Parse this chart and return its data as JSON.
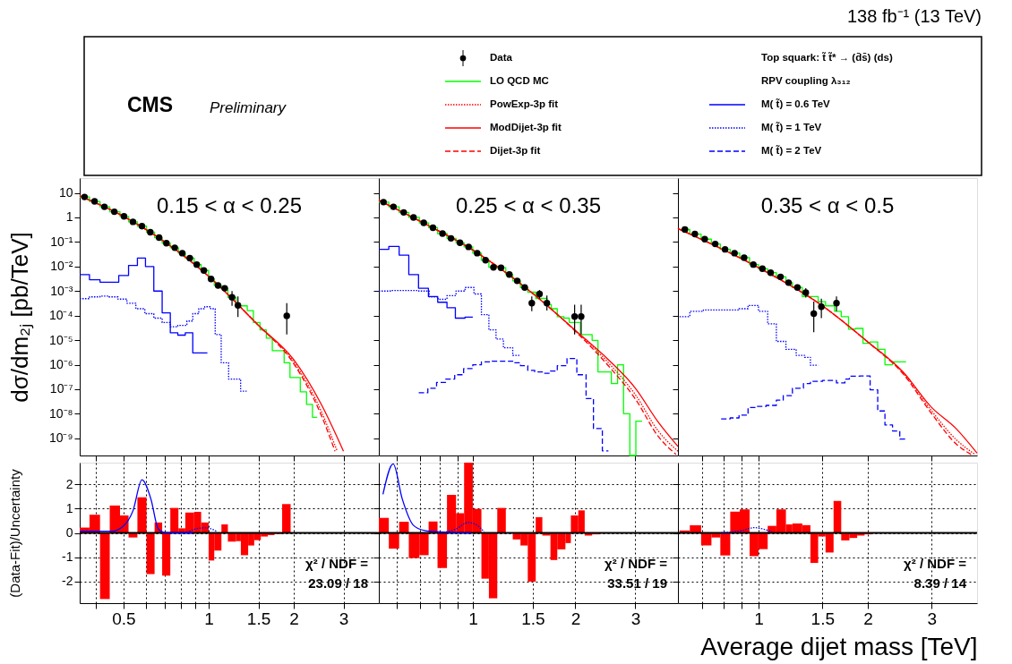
{
  "chart_data": [
    {
      "type": "line",
      "title": "0.15 < α < 0.25",
      "ylabel": "dσ/dm₂ⱼ [pb/TeV]",
      "log": "xy",
      "tick_labels": "y",
      "legend": "top",
      "annotations": [
        "CMS",
        "Preliminary",
        "Top squark: t̃ t̃* → (d̄s̄) (ds)",
        "RPV coupling λ₃₁₂",
        "138 fb⁻¹ (13 TeV)"
      ],
      "xlim": [
        0.35,
        4.0
      ],
      "ylim": [
        2e-10,
        40
      ],
      "xticks": [
        {
          "value": 0.4,
          "label": null
        },
        0.5,
        {
          "value": 0.6,
          "label": null
        },
        {
          "value": 0.7,
          "label": null
        },
        {
          "value": 0.8,
          "label": null
        },
        {
          "value": 0.9,
          "label": null
        },
        1,
        1.5,
        2,
        3
      ],
      "yticks": [
        10,
        1,
        {
          "value": 0.1,
          "label": "10⁻¹"
        },
        {
          "value": 0.01,
          "label": "10⁻²"
        },
        {
          "value": 0.001,
          "label": "10⁻³"
        },
        {
          "value": 0.0001,
          "label": "10⁻⁴"
        },
        {
          "value": 1e-05,
          "label": "10⁻⁵"
        },
        {
          "value": 1e-06,
          "label": "10⁻⁶"
        },
        {
          "value": 1e-07,
          "label": "10⁻⁷"
        },
        {
          "value": 1e-08,
          "label": "10⁻⁸"
        },
        {
          "value": 1e-09,
          "label": "10⁻⁹"
        }
      ],
      "series": [
        {
          "name": "Data",
          "type": "scatter",
          "marker": "circle",
          "color": "#000000",
          "x": [
            0.364,
            0.395,
            0.428,
            0.464,
            0.502,
            0.54,
            0.581,
            0.622,
            0.668,
            0.709,
            0.759,
            0.807,
            0.858,
            0.908,
            0.962,
            1.02,
            1.08,
            1.14,
            1.21,
            1.27,
            1.89
          ],
          "values": [
            6.8,
            4.5,
            2.7,
            1.7,
            1.1,
            0.66,
            0.44,
            0.25,
            0.15,
            0.089,
            0.058,
            0.035,
            0.022,
            0.012,
            0.0069,
            0.0031,
            0.0017,
            0.0013,
            0.00056,
            0.00026,
            9.8e-05
          ],
          "errors": [
            null,
            null,
            null,
            null,
            null,
            null,
            null,
            null,
            null,
            null,
            null,
            null,
            null,
            null,
            null,
            null,
            null,
            null,
            [
              0.00025,
              0.001
            ],
            [
              8.7e-05,
              0.0006
            ],
            [
              1.7e-05,
              0.00032
            ]
          ]
        },
        {
          "name": "LO QCD MC",
          "type": "step",
          "color": "#00ff00",
          "x": [
            0.35,
            0.379,
            0.413,
            0.447,
            0.486,
            0.521,
            0.56,
            0.603,
            0.644,
            0.685,
            0.732,
            0.782,
            0.827,
            0.889,
            0.941,
            1.0,
            1.047,
            1.11,
            1.17,
            1.25,
            1.3,
            1.37,
            1.44,
            1.52,
            1.6,
            1.68,
            1.85,
            1.94,
            2.11,
            2.22,
            2.33,
            2.42
          ],
          "values": [
            6.8,
            4.5,
            2.7,
            1.7,
            1.1,
            0.66,
            0.44,
            0.25,
            0.15,
            0.089,
            0.058,
            0.035,
            0.022,
            0.012,
            0.0069,
            0.0031,
            0.0017,
            0.0013,
            0.00056,
            0.00026,
            0.00025,
            0.00016,
            5.2e-05,
            2.6e-05,
            1.2e-05,
            3.7e-06,
            1.2e-06,
            3e-07,
            7.8e-08,
            2.4e-08,
            7.2e-09,
            7.2e-09
          ]
        },
        {
          "name": "PowExp-3p fit",
          "type": "line",
          "line_style": "dotted",
          "color": "#ff0000",
          "x": [
            0.35,
            0.5,
            0.7,
            1.0,
            1.5,
            2.0,
            2.5,
            2.85
          ],
          "values": [
            7.5,
            1.1,
            0.1,
            0.004,
            4e-05,
            1.3e-06,
            1.3e-08,
            3e-10
          ]
        },
        {
          "name": "ModDijet-3p fit",
          "type": "line",
          "color": "#ff0000",
          "x": [
            0.35,
            0.5,
            0.7,
            1.0,
            1.5,
            2.0,
            2.5,
            3.0
          ],
          "values": [
            7.5,
            1.1,
            0.1,
            0.004,
            4e-05,
            1.6e-06,
            2.5e-08,
            3e-10
          ]
        },
        {
          "name": "Dijet-3p fit",
          "type": "line",
          "line_style": "dashed",
          "color": "#ff0000",
          "x": [
            0.35,
            0.5,
            0.7,
            1.0,
            1.5,
            2.0,
            2.5,
            2.8
          ],
          "values": [
            7.5,
            1.1,
            0.1,
            0.004,
            4e-05,
            1.1e-06,
            9e-09,
            3e-10
          ]
        },
        {
          "name": "M( t̃) = 0.6 TeV",
          "type": "step",
          "color": "#0000ff",
          "x": [
            0.35,
            0.379,
            0.413,
            0.481,
            0.521,
            0.56,
            0.598,
            0.64,
            0.685,
            0.732,
            0.778,
            0.827,
            0.879,
            0.99
          ],
          "values": [
            0.0047,
            0.0029,
            0.0023,
            0.0043,
            0.011,
            0.022,
            0.01,
            0.001,
            0.00013,
            2e-05,
            1.6e-05,
            2e-05,
            3e-06,
            3e-06
          ]
        },
        {
          "name": "M( t̃) = 1 TeV",
          "type": "step",
          "line_style": "dotted",
          "color": "#0000ff",
          "x": [
            0.35,
            0.379,
            0.413,
            0.444,
            0.478,
            0.514,
            0.553,
            0.595,
            0.64,
            0.685,
            0.732,
            0.778,
            0.838,
            0.879,
            0.923,
            0.969,
            1.017,
            1.055,
            1.108,
            1.177,
            1.298,
            1.363
          ],
          "values": [
            0.00049,
            0.00058,
            0.00062,
            0.00058,
            0.00047,
            0.00032,
            0.00019,
            0.00012,
            7.9e-05,
            5.2e-05,
            3.5e-05,
            4e-05,
            6e-05,
            0.00012,
            0.00019,
            0.00023,
            0.00019,
            1.7e-05,
            1.2e-06,
            2.6e-07,
            8.3e-08,
            8.3e-08
          ]
        }
      ]
    },
    {
      "type": "line",
      "title": "0.25 < α < 0.35",
      "log": "xy",
      "tick_labels": false,
      "xlim": [
        0.53,
        4.0
      ],
      "ylim": [
        2e-10,
        40
      ],
      "xticks": [
        {
          "value": 0.6,
          "label": null
        },
        {
          "value": 0.7,
          "label": null
        },
        {
          "value": 0.8,
          "label": null
        },
        {
          "value": 0.9,
          "label": null
        },
        1,
        1.5,
        2,
        3
      ],
      "yticks": [
        {
          "value": 10,
          "label": null
        },
        {
          "value": 1,
          "label": null
        },
        {
          "value": 0.1,
          "label": null
        },
        {
          "value": 0.01,
          "label": null
        },
        {
          "value": 0.001,
          "label": null
        },
        {
          "value": 0.0001,
          "label": null
        },
        {
          "value": 1e-05,
          "label": null
        },
        {
          "value": 1e-06,
          "label": null
        },
        {
          "value": 1e-07,
          "label": null
        },
        {
          "value": 1e-08,
          "label": null
        },
        {
          "value": 1e-09,
          "label": null
        }
      ],
      "series": [
        {
          "type": "scatter",
          "marker": "circle",
          "color": "#000000",
          "x": [
            0.547,
            0.585,
            0.627,
            0.67,
            0.718,
            0.764,
            0.815,
            0.863,
            0.917,
            0.972,
            1.03,
            1.09,
            1.15,
            1.21,
            1.28,
            1.35,
            1.42,
            1.49,
            1.57,
            1.65,
            1.99,
            2.08
          ],
          "values": [
            4.2,
            2.7,
            1.6,
            1.0,
            0.6,
            0.38,
            0.22,
            0.14,
            0.093,
            0.063,
            0.035,
            0.018,
            0.0093,
            0.0089,
            0.0047,
            0.0026,
            0.0014,
            0.00032,
            0.00076,
            0.00032,
            9.1e-05,
            9.1e-05
          ],
          "errors": [
            null,
            null,
            null,
            null,
            null,
            null,
            null,
            null,
            null,
            null,
            null,
            null,
            null,
            null,
            null,
            null,
            null,
            [
              0.00015,
              0.0006
            ],
            [
              0.00049,
              0.0011
            ],
            [
              0.00016,
              0.00065
            ],
            [
              1.7e-05,
              0.00028
            ],
            [
              1.7e-05,
              0.00028
            ]
          ]
        },
        {
          "type": "step",
          "color": "#00ff00",
          "x": [
            0.53,
            0.567,
            0.608,
            0.649,
            0.697,
            0.742,
            0.788,
            0.84,
            0.893,
            0.943,
            1.0,
            1.06,
            1.115,
            1.18,
            1.25,
            1.31,
            1.38,
            1.45,
            1.53,
            1.65,
            1.7,
            1.77,
            1.85,
            1.92,
            2.07,
            2.24,
            2.33,
            2.55,
            2.66,
            2.77,
            2.89,
            3.01,
            3.14
          ],
          "values": [
            4.2,
            2.7,
            1.6,
            1.0,
            0.6,
            0.38,
            0.22,
            0.14,
            0.093,
            0.063,
            0.035,
            0.018,
            0.0093,
            0.0089,
            0.0047,
            0.0026,
            0.0014,
            0.0009,
            0.0005,
            0.00028,
            0.00019,
            9.1e-05,
            7.9e-05,
            5.2e-05,
            1.7e-05,
            9.8e-06,
            5.1e-07,
            1.7e-07,
            1e-06,
            1e-08,
            2e-10,
            5e-09,
            5e-09
          ]
        },
        {
          "type": "line",
          "line_style": "dotted",
          "color": "#ff0000",
          "x": [
            0.53,
            0.7,
            1.0,
            1.5,
            2.0,
            2.5,
            3.0,
            3.5,
            4.0
          ],
          "values": [
            5,
            0.7,
            0.047,
            0.0008,
            2.4e-05,
            1.2e-06,
            6e-08,
            2e-09,
            3e-10
          ]
        },
        {
          "type": "line",
          "color": "#ff0000",
          "x": [
            0.53,
            0.7,
            1.0,
            1.5,
            2.0,
            2.5,
            3.0,
            3.5,
            4.0
          ],
          "values": [
            5,
            0.7,
            0.047,
            0.0008,
            2.5e-05,
            1.6e-06,
            1.1e-07,
            4.6e-09,
            4.7e-10
          ]
        },
        {
          "type": "line",
          "line_style": "dashed",
          "color": "#ff0000",
          "x": [
            0.53,
            0.7,
            1.0,
            1.5,
            2.0,
            2.5,
            3.0,
            3.5,
            3.95
          ],
          "values": [
            5,
            0.7,
            0.047,
            0.0008,
            2.3e-05,
            9e-07,
            4e-08,
            1.2e-09,
            2.2e-10
          ]
        },
        {
          "type": "step",
          "color": "#0000ff",
          "x": [
            0.53,
            0.567,
            0.608,
            0.649,
            0.693,
            0.741,
            0.789,
            0.84,
            0.889,
            0.949,
            1.0
          ],
          "values": [
            0.05,
            0.066,
            0.029,
            0.0047,
            0.0013,
            0.0006,
            0.00035,
            0.00021,
            7.9e-05,
            8.7e-05,
            8.7e-05
          ]
        },
        {
          "type": "step",
          "line_style": "dotted",
          "color": "#0000ff",
          "x": [
            0.53,
            0.573,
            0.647,
            0.694,
            0.745,
            0.791,
            0.84,
            0.893,
            0.949,
            1.008,
            1.06,
            1.115,
            1.17,
            1.23,
            1.31,
            1.38
          ],
          "values": [
            0.001,
            0.00105,
            0.00105,
            0.001,
            0.00058,
            0.00046,
            0.00065,
            0.001,
            0.0014,
            0.00076,
            0.00011,
            2.6e-05,
            1.1e-05,
            4.9e-06,
            2.4e-06,
            2.4e-06
          ]
        },
        {
          "name": "M( t̃) = 2 TeV",
          "type": "step",
          "line_style": "dashed",
          "color": "#0000ff",
          "x": [
            0.694,
            0.738,
            0.783,
            0.832,
            0.885,
            0.94,
            1.0,
            1.06,
            1.14,
            1.23,
            1.31,
            1.38,
            1.45,
            1.52,
            1.6,
            1.69,
            1.77,
            1.89,
            2.02,
            2.15,
            2.26,
            2.4,
            2.5
          ],
          "values": [
            7.2e-08,
            1.1e-07,
            1.9e-07,
            2.6e-07,
            3.9e-07,
            6.9e-07,
            1e-06,
            1.3e-06,
            1.4e-06,
            1.4e-06,
            1.2e-06,
            9.1e-07,
            5.9e-07,
            5.1e-07,
            4.5e-07,
            5.5e-07,
            9.1e-07,
            1.8e-06,
            3.9e-07,
            4.2e-08,
            2.5e-09,
            3.1e-10,
            3.1e-10
          ]
        }
      ]
    },
    {
      "type": "line",
      "title": "0.35 < α < 0.5",
      "log": "xy",
      "tick_labels": false,
      "xlim": [
        0.6,
        4.0
      ],
      "ylim": [
        2e-10,
        40
      ],
      "xticks": [
        {
          "value": 0.7,
          "label": null
        },
        {
          "value": 0.8,
          "label": null
        },
        {
          "value": 0.9,
          "label": null
        },
        1,
        1.5,
        2,
        3
      ],
      "yticks": [
        {
          "value": 10,
          "label": null
        },
        {
          "value": 1,
          "label": null
        },
        {
          "value": 0.1,
          "label": null
        },
        {
          "value": 0.01,
          "label": null
        },
        {
          "value": 0.001,
          "label": null
        },
        {
          "value": 0.0001,
          "label": null
        },
        {
          "value": 1e-05,
          "label": null
        },
        {
          "value": 1e-06,
          "label": null
        },
        {
          "value": 1e-07,
          "label": null
        },
        {
          "value": 1e-08,
          "label": null
        },
        {
          "value": 1e-09,
          "label": null
        }
      ],
      "series": [
        {
          "type": "scatter",
          "marker": "circle",
          "color": "#000000",
          "x": [
            0.627,
            0.668,
            0.711,
            0.76,
            0.809,
            0.859,
            0.913,
            0.968,
            1.025,
            1.08,
            1.15,
            1.21,
            1.28,
            1.35,
            1.42,
            1.49,
            1.64
          ],
          "values": [
            0.32,
            0.21,
            0.13,
            0.083,
            0.05,
            0.035,
            0.023,
            0.012,
            0.0081,
            0.0056,
            0.0038,
            0.0022,
            0.0014,
            0.00087,
            0.00012,
            0.00023,
            0.00032
          ],
          "errors": [
            null,
            null,
            null,
            null,
            null,
            null,
            null,
            null,
            null,
            null,
            null,
            null,
            null,
            [
              0.00054,
              0.0013
            ],
            [
              2.1e-05,
              0.00037
            ],
            [
              7.9e-05,
              0.00049
            ],
            [
              0.00015,
              0.0006
            ]
          ]
        },
        {
          "type": "step",
          "color": "#00ff00",
          "x": [
            0.606,
            0.647,
            0.695,
            0.742,
            0.785,
            0.836,
            0.888,
            0.945,
            1.0,
            1.06,
            1.12,
            1.19,
            1.24,
            1.32,
            1.46,
            1.53,
            1.62,
            1.69,
            1.77,
            1.85,
            1.94,
            2.03,
            2.13,
            2.23,
            2.34,
            2.55
          ],
          "values": [
            0.32,
            0.21,
            0.13,
            0.083,
            0.05,
            0.035,
            0.023,
            0.012,
            0.0081,
            0.0056,
            0.0038,
            0.0022,
            0.0014,
            0.0006,
            0.00037,
            0.00025,
            0.00015,
            9.1e-05,
            2.8e-05,
            3e-05,
            7.4e-06,
            8.5e-06,
            4.2e-06,
            1e-06,
            1.3e-06,
            1.3e-06
          ]
        },
        {
          "type": "line",
          "line_style": "dotted",
          "color": "#ff0000",
          "x": [
            0.6,
            1.0,
            1.5,
            2.0,
            2.5,
            3.0,
            3.5,
            3.95
          ],
          "values": [
            0.35,
            0.009,
            0.00025,
            8.5e-06,
            4.6e-07,
            1.3e-08,
            9e-10,
            2.2e-10
          ]
        },
        {
          "type": "line",
          "color": "#ff0000",
          "x": [
            0.6,
            1.0,
            1.5,
            2.0,
            2.5,
            3.0,
            3.5,
            4.0
          ],
          "values": [
            0.35,
            0.009,
            0.00025,
            8.5e-06,
            5.1e-07,
            1.8e-08,
            2.5e-09,
            2.5e-10
          ]
        },
        {
          "type": "line",
          "line_style": "dashed",
          "color": "#ff0000",
          "x": [
            0.6,
            1.0,
            1.5,
            2.0,
            2.5,
            3.0,
            3.5,
            3.85
          ],
          "values": [
            0.35,
            0.009,
            0.00025,
            8.3e-06,
            4.3e-07,
            1e-08,
            6e-10,
            2.2e-10
          ]
        },
        {
          "type": "step",
          "line_style": "dotted",
          "color": "#0000ff",
          "x": [
            0.606,
            0.647,
            0.705,
            0.789,
            0.884,
            0.936,
            1.0,
            1.06,
            1.12,
            1.19,
            1.27,
            1.34,
            1.39,
            1.46
          ],
          "values": [
            9.1e-05,
            0.00015,
            0.00017,
            0.00017,
            0.00019,
            0.00026,
            0.00015,
            4.6e-05,
            8.9e-06,
            4.2e-06,
            2.4e-06,
            2e-06,
            9.5e-07,
            9.5e-07
          ]
        },
        {
          "type": "step",
          "line_style": "dashed",
          "color": "#0000ff",
          "x": [
            0.789,
            0.836,
            0.884,
            0.936,
            0.99,
            1.05,
            1.12,
            1.17,
            1.24,
            1.33,
            1.39,
            1.5,
            1.64,
            1.73,
            1.78,
            1.9,
            2.03,
            2.13,
            2.23,
            2.34,
            2.45,
            2.55
          ],
          "values": [
            6.2e-09,
            6.8e-09,
            8.9e-09,
            1.8e-08,
            2e-08,
            2.2e-08,
            3.6e-08,
            5.5e-08,
            1.1e-07,
            1.7e-07,
            2.1e-07,
            2.3e-07,
            1.8e-07,
            2.6e-07,
            3.4e-07,
            3.5e-07,
            9.5e-08,
            1.3e-08,
            3.5e-09,
            2e-09,
            9.3e-10,
            9.3e-10
          ]
        }
      ]
    },
    {
      "type": "histogram",
      "ylabel": "(Data-Fit)/Uncertainty",
      "log": "x",
      "grid": true,
      "color": "#ff0000",
      "annotations": [
        "χ² / NDF =",
        "23.09 / 18"
      ],
      "xlim": [
        0.35,
        4.0
      ],
      "ylim": [
        -2.9,
        2.9
      ],
      "xticks": [
        {
          "value": 0.4,
          "label": null
        },
        0.5,
        {
          "value": 0.6,
          "label": null
        },
        {
          "value": 0.7,
          "label": null
        },
        {
          "value": 0.8,
          "label": null
        },
        {
          "value": 0.9,
          "label": null
        },
        1,
        1.5,
        2,
        3
      ],
      "yticks": [
        -2,
        -1,
        0,
        1,
        2
      ],
      "ref_lines": [
        {
          "axis": "y",
          "value": 0,
          "color": "#000000"
        }
      ],
      "bins": [
        0.35,
        0.379,
        0.413,
        0.447,
        0.486,
        0.521,
        0.56,
        0.603,
        0.644,
        0.685,
        0.732,
        0.782,
        0.827,
        0.889,
        0.941,
        1.0,
        1.047,
        1.11,
        1.17,
        1.25,
        1.3,
        1.38,
        1.45,
        1.53,
        1.62,
        1.71,
        1.82,
        1.95
      ],
      "values": [
        0.22,
        0.75,
        -2.73,
        1.13,
        0.72,
        -0.19,
        1.47,
        -1.7,
        0.43,
        -1.76,
        1.03,
        0.19,
        0.84,
        0.87,
        0.43,
        -1.14,
        -0.73,
        0.35,
        -0.36,
        -0.34,
        -0.92,
        -0.52,
        -0.3,
        -0.15,
        -0.09,
        -0.04,
        1.19
      ],
      "series": [
        {
          "type": "line",
          "color": "#0000ff",
          "x": [
            0.35,
            0.455,
            0.496,
            0.54,
            0.581,
            0.625,
            0.664,
            0.706,
            0.879
          ],
          "values": [
            0.07,
            0.07,
            0.25,
            0.91,
            2.19,
            1.4,
            0.16,
            0.01,
            0
          ]
        },
        {
          "type": "line",
          "line_style": "dotted",
          "color": "#0000ff",
          "x": [
            0.837,
            0.923,
            0.98,
            1.07
          ],
          "values": [
            0.01,
            0.19,
            0.21,
            0.06
          ]
        }
      ]
    },
    {
      "type": "histogram",
      "log": "x",
      "grid": true,
      "color": "#ff0000",
      "tick_labels": "x",
      "annotations": [
        "χ² / NDF =",
        "33.51 / 19"
      ],
      "xlim": [
        0.53,
        4.0
      ],
      "ylim": [
        -2.9,
        2.9
      ],
      "xticks": [
        {
          "value": 0.6,
          "label": null
        },
        {
          "value": 0.7,
          "label": null
        },
        {
          "value": 0.8,
          "label": null
        },
        {
          "value": 0.9,
          "label": null
        },
        1,
        1.5,
        2,
        3
      ],
      "yticks": [
        -2,
        -1,
        0,
        1,
        2
      ],
      "ref_lines": [
        {
          "axis": "y",
          "value": 0,
          "color": "#000000"
        }
      ],
      "bins": [
        0.53,
        0.567,
        0.608,
        0.649,
        0.697,
        0.742,
        0.788,
        0.84,
        0.893,
        0.943,
        1.0,
        1.06,
        1.115,
        1.18,
        1.25,
        1.31,
        1.38,
        1.45,
        1.53,
        1.6,
        1.69,
        1.77,
        1.87,
        1.94,
        2.04,
        2.13,
        2.24,
        2.35,
        2.45
      ],
      "values": [
        0.62,
        -0.65,
        0.46,
        -1.04,
        -0.92,
        0.47,
        -1.45,
        1.57,
        0.81,
        2.9,
        0.99,
        -1.89,
        -2.7,
        1.03,
        0,
        -0.27,
        -0.52,
        -2.01,
        0.65,
        -0.11,
        -1.12,
        -0.68,
        -0.42,
        0.72,
        0.93,
        -0.11,
        -0.06,
        -0.02
      ],
      "series": [
        {
          "type": "line",
          "color": "#0000ff",
          "x": [
            0.545,
            0.584,
            0.621,
            0.67,
            0.723,
            0.807,
            0.988
          ],
          "values": [
            1.59,
            2.85,
            1.4,
            0.31,
            0.1,
            0.04,
            0
          ]
        },
        {
          "type": "line",
          "line_style": "dotted",
          "color": "#0000ff",
          "x": [
            0.791,
            0.893,
            0.968,
            1.02,
            1.08
          ],
          "values": [
            0.01,
            0.16,
            0.43,
            0.35,
            0.04
          ]
        }
      ]
    },
    {
      "type": "histogram",
      "xlabel": "Average dijet mass [TeV]",
      "log": "x",
      "grid": true,
      "color": "#ff0000",
      "tick_labels": "x",
      "annotations": [
        "χ² / NDF =",
        "8.39 / 14"
      ],
      "xlim": [
        0.6,
        4.0
      ],
      "ylim": [
        -2.9,
        2.9
      ],
      "xticks": [
        {
          "value": 0.7,
          "label": null
        },
        {
          "value": 0.8,
          "label": null
        },
        {
          "value": 0.9,
          "label": null
        },
        1,
        1.5,
        2,
        3
      ],
      "yticks": [
        -2,
        -1,
        0,
        1,
        2
      ],
      "ref_lines": [
        {
          "axis": "y",
          "value": 0,
          "color": "#000000"
        }
      ],
      "bins": [
        0.606,
        0.647,
        0.695,
        0.742,
        0.785,
        0.836,
        0.888,
        0.945,
        1.0,
        1.06,
        1.12,
        1.19,
        1.24,
        1.32,
        1.39,
        1.46,
        1.53,
        1.61,
        1.69,
        1.78,
        1.87,
        1.96,
        2.05,
        2.15
      ],
      "values": [
        0.1,
        0.31,
        -0.52,
        -0.19,
        -0.93,
        0.88,
        0.97,
        -0.96,
        -0.67,
        0.29,
        0.97,
        0.35,
        0.39,
        0.32,
        -1.24,
        -0.15,
        -0.81,
        1.32,
        -0.31,
        -0.21,
        -0.11,
        -0.06,
        -0.02
      ],
      "series": [
        {
          "type": "line",
          "line_style": "dotted",
          "color": "#0000ff",
          "x": [
            0.79,
            0.901,
            0.972,
            1.03,
            1.09
          ],
          "values": [
            0.01,
            0.1,
            0.22,
            0.16,
            0.04
          ]
        }
      ]
    }
  ]
}
